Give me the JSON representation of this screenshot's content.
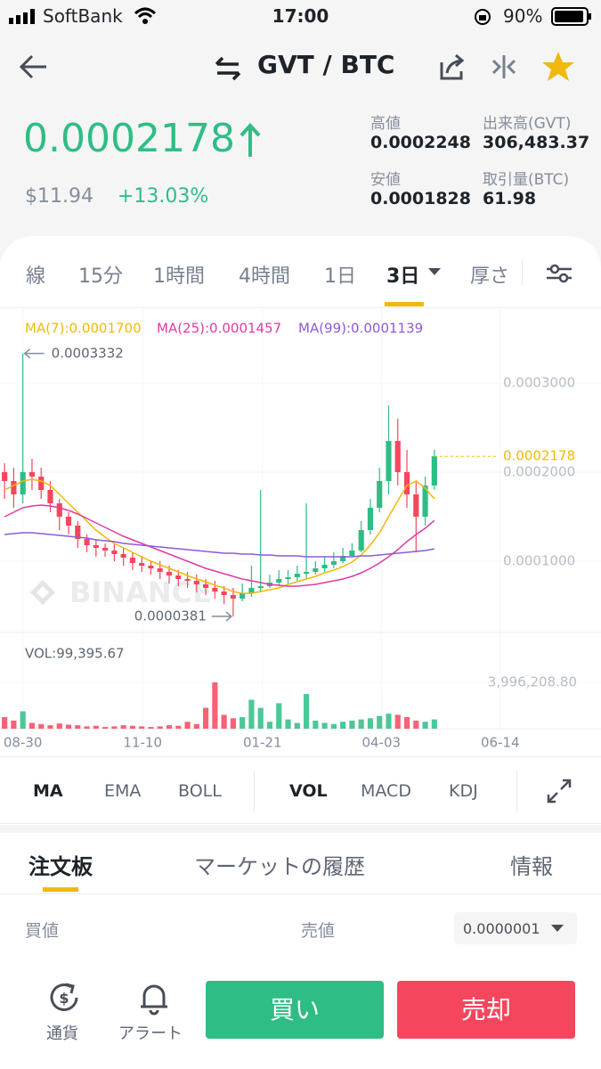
{
  "status_bar": {
    "carrier": "SoftBank",
    "time": "17:00",
    "battery": "90%"
  },
  "header": {
    "pair": "GVT / BTC"
  },
  "ticker": {
    "price": "0.0002178",
    "fiat": "$11.94",
    "change": "+13.03%",
    "stats": [
      {
        "label": "高値",
        "value": "0.0002248"
      },
      {
        "label": "出来高(GVT)",
        "value": "306,483.37"
      },
      {
        "label": "安値",
        "value": "0.0001828"
      },
      {
        "label": "取引量(BTC)",
        "value": "61.98"
      }
    ]
  },
  "intervals": [
    "線",
    "15分",
    "1時間",
    "4時間",
    "1日",
    "3日",
    "厚さ"
  ],
  "chart_data": {
    "type": "candlestick",
    "watermark": "BINANCE",
    "up_color": "#2ebd85",
    "down_color": "#f6465d",
    "open": [
      0.0002,
      0.00019,
      0.000175,
      0.0002,
      0.000195,
      0.00018,
      0.000165,
      0.00015,
      0.00014,
      0.000125,
      0.000118,
      0.000115,
      0.000112,
      0.000108,
      0.000104,
      9.8e-05,
      9.5e-05,
      9.2e-05,
      8.8e-05,
      8.4e-05,
      8e-05,
      7.8e-05,
      7.4e-05,
      7e-05,
      6.6e-05,
      6.2e-05,
      5.8e-05,
      6.4e-05,
      7e-05,
      7.2e-05,
      7.6e-05,
      8e-05,
      8.2e-05,
      8.6e-05,
      8.8e-05,
      9.2e-05,
      9.6e-05,
      0.0001,
      0.000106,
      0.000112,
      0.000135,
      0.00016,
      0.00019,
      0.000235,
      0.0002,
      0.000175,
      0.00015,
      0.000185
    ],
    "high": [
      0.00021,
      0.000205,
      0.0003332,
      0.000215,
      0.000205,
      0.00019,
      0.00017,
      0.000155,
      0.000145,
      0.00013,
      0.000125,
      0.00012,
      0.00012,
      0.000115,
      0.00011,
      0.000105,
      0.0001,
      0.0001,
      9.5e-05,
      9e-05,
      8.8e-05,
      8.5e-05,
      8e-05,
      7.8e-05,
      7.2e-05,
      7e-05,
      7.5e-05,
      9.5e-05,
      0.00018,
      8.5e-05,
      9e-05,
      9e-05,
      9.5e-05,
      0.000165,
      0.0001,
      0.000105,
      0.00011,
      0.000115,
      0.00012,
      0.000145,
      0.00017,
      0.000205,
      0.000275,
      0.00026,
      0.000225,
      0.00019,
      0.000195,
      0.000225
    ],
    "low": [
      0.00017,
      0.00016,
      0.000165,
      0.00018,
      0.00017,
      0.000155,
      0.000135,
      0.00013,
      0.000115,
      0.00011,
      0.000105,
      0.000105,
      0.0001,
      9.5e-05,
      9e-05,
      8.8e-05,
      8.5e-05,
      8e-05,
      7.5e-05,
      7.2e-05,
      7e-05,
      6.5e-05,
      6.2e-05,
      5.8e-05,
      5.2e-05,
      3.81e-05,
      5.5e-05,
      6e-05,
      6.5e-05,
      7e-05,
      7.2e-05,
      7.5e-05,
      7.8e-05,
      8e-05,
      8.5e-05,
      8.8e-05,
      9.2e-05,
      9.8e-05,
      0.000105,
      0.00011,
      0.00013,
      0.000155,
      0.000175,
      0.000185,
      0.00016,
      0.00011,
      0.00014,
      0.00018
    ],
    "close": [
      0.00019,
      0.000175,
      0.0002,
      0.000195,
      0.00018,
      0.000165,
      0.00015,
      0.00014,
      0.000125,
      0.000118,
      0.000115,
      0.000112,
      0.000108,
      0.000104,
      9.8e-05,
      9.5e-05,
      9.2e-05,
      8.8e-05,
      8.4e-05,
      8e-05,
      7.8e-05,
      7.4e-05,
      7e-05,
      6.6e-05,
      6.2e-05,
      5.8e-05,
      6.4e-05,
      7e-05,
      7.2e-05,
      7.6e-05,
      8e-05,
      8.2e-05,
      8.6e-05,
      8.8e-05,
      9.2e-05,
      9.6e-05,
      0.0001,
      0.000106,
      0.000112,
      0.000135,
      0.00016,
      0.00019,
      0.000235,
      0.0002,
      0.000175,
      0.00015,
      0.000185,
      0.0002178
    ],
    "ma": [
      {
        "name": "MA(7):0.0001700",
        "color": "#f0b90b",
        "values": [
          0.00018,
          0.000185,
          0.00019,
          0.000192,
          0.00019,
          0.000185,
          0.000175,
          0.000165,
          0.000155,
          0.000145,
          0.000135,
          0.000127,
          0.00012,
          0.000115,
          0.00011,
          0.000105,
          0.0001,
          9.6e-05,
          9.2e-05,
          8.8e-05,
          8.4e-05,
          8e-05,
          7.7e-05,
          7.3e-05,
          7e-05,
          6.6e-05,
          6.4e-05,
          6.4e-05,
          6.6e-05,
          6.8e-05,
          7e-05,
          7.4e-05,
          7.7e-05,
          8e-05,
          8.3e-05,
          8.7e-05,
          9e-05,
          9.4e-05,
          9.9e-05,
          0.000107,
          0.000118,
          0.000132,
          0.00015,
          0.000168,
          0.000185,
          0.00019,
          0.000182,
          0.00017
        ]
      },
      {
        "name": "MA(25):0.0001457",
        "color": "#e03aa4",
        "values": [
          0.00015,
          0.000155,
          0.00016,
          0.000162,
          0.000163,
          0.000162,
          0.00016,
          0.000157,
          0.000153,
          0.000148,
          0.000143,
          0.000138,
          0.000133,
          0.000128,
          0.000124,
          0.00012,
          0.000116,
          0.000112,
          0.000108,
          0.000104,
          0.0001,
          9.6e-05,
          9.2e-05,
          8.9e-05,
          8.6e-05,
          8.3e-05,
          8e-05,
          7.8e-05,
          7.6e-05,
          7.4e-05,
          7.3e-05,
          7.2e-05,
          7.2e-05,
          7.3e-05,
          7.4e-05,
          7.6e-05,
          7.8e-05,
          8e-05,
          8.3e-05,
          8.7e-05,
          9.2e-05,
          9.8e-05,
          0.000105,
          0.000113,
          0.000122,
          0.00013,
          0.000137,
          0.0001457
        ]
      },
      {
        "name": "MA(99):0.0001139",
        "color": "#8d5ad6",
        "values": [
          0.00013,
          0.000131,
          0.000132,
          0.000132,
          0.000131,
          0.00013,
          0.000129,
          0.000128,
          0.000127,
          0.000126,
          0.000124,
          0.000123,
          0.000122,
          0.00012,
          0.000119,
          0.000118,
          0.000117,
          0.000116,
          0.000115,
          0.000114,
          0.000113,
          0.000112,
          0.000111,
          0.00011,
          0.000109,
          0.000109,
          0.000108,
          0.000108,
          0.000107,
          0.000107,
          0.000106,
          0.000106,
          0.000106,
          0.000105,
          0.000105,
          0.000105,
          0.000105,
          0.000105,
          0.000105,
          0.000106,
          0.000106,
          0.000107,
          0.000108,
          0.000109,
          0.00011,
          0.000111,
          0.000112,
          0.0001139
        ]
      }
    ],
    "high_label": "0.0003332",
    "low_label": "0.0000381",
    "last_label": "0.0002178",
    "xlim": [
      -0.5,
      55
    ],
    "xticks": [
      {
        "value": 2,
        "label": "08-30"
      },
      {
        "value": 15.1,
        "label": "11-10"
      },
      {
        "value": 28.2,
        "label": "01-21"
      },
      {
        "value": 41.2,
        "label": "04-03"
      },
      {
        "value": 54.2,
        "label": "06-14"
      }
    ],
    "ylim": [
      2e-05,
      0.000385
    ],
    "yticks": [
      {
        "value": 0.0001,
        "label": "0.0001000"
      },
      {
        "value": 0.0002,
        "label": "0.0002000"
      },
      {
        "value": 0.0003,
        "label": "0.0003000"
      }
    ],
    "volume": {
      "label": "VOL:99,395.67",
      "values": [
        1000000,
        700000,
        1500000,
        500000,
        400000,
        300000,
        450000,
        350000,
        300000,
        200000,
        250000,
        150000,
        200000,
        300000,
        250000,
        200000,
        150000,
        200000,
        300000,
        250000,
        600000,
        400000,
        1800000,
        4000000,
        1200000,
        900000,
        1000000,
        2500000,
        1800000,
        600000,
        2200000,
        800000,
        500000,
        3000000,
        700000,
        500000,
        400000,
        600000,
        700000,
        800000,
        900000,
        1100000,
        1300000,
        1200000,
        1000000,
        700000,
        600000,
        800000
      ],
      "ylim": [
        0,
        4460000
      ],
      "yticks": [
        {
          "value": 3996208.8,
          "label": "3,996,208.80"
        }
      ]
    }
  },
  "indicators": [
    "MA",
    "EMA",
    "BOLL",
    "VOL",
    "MACD",
    "KDJ"
  ],
  "order_tabs": [
    "注文板",
    "マーケットの履歴",
    "情報"
  ],
  "order_book": {
    "bid": "買値",
    "ask": "売値",
    "precision": "0.0000001"
  },
  "bottom_bar": {
    "currency": "通貨",
    "alert": "アラート",
    "buy": "買い",
    "sell": "売却"
  }
}
